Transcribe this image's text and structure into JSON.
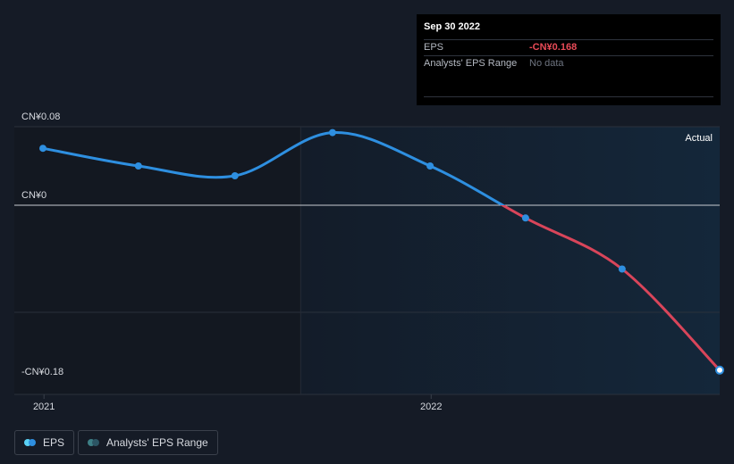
{
  "tooltip": {
    "date": "Sep 30 2022",
    "rows": [
      {
        "label": "EPS",
        "value": "-CN¥0.168"
      },
      {
        "label": "Analysts' EPS Range",
        "value": "No data"
      }
    ]
  },
  "legend": {
    "eps_label": "EPS",
    "range_label": "Analysts' EPS Range"
  },
  "colors": {
    "background": "#151b26",
    "past_band": "#131821",
    "future_band": "#14273a",
    "positive_line": "#2e8fe0",
    "negative_line": "#d9455a",
    "zero_line": "#c8ccd2",
    "grid": "#2a313c"
  },
  "chart_data": {
    "type": "line",
    "series": [
      {
        "name": "EPS",
        "x": [
          "2020-12-31",
          "2021-03-31",
          "2021-06-30",
          "2021-09-30",
          "2021-12-31",
          "2022-03-31",
          "2022-06-30",
          "2022-09-30"
        ],
        "values": [
          0.058,
          0.04,
          0.03,
          0.074,
          0.04,
          -0.013,
          -0.065,
          -0.168
        ]
      }
    ],
    "y_ticks": [
      {
        "value": 0.08,
        "label": "CN¥0.08"
      },
      {
        "value": 0,
        "label": "CN¥0"
      },
      {
        "value": -0.18,
        "label": "-CN¥0.18"
      }
    ],
    "x_ticks": [
      {
        "value": "2021-01-01",
        "label": "2021"
      },
      {
        "value": "2022-01-01",
        "label": "2022"
      }
    ],
    "ylim": [
      -0.18,
      0.08
    ],
    "xlim": [
      "2020-12-31",
      "2022-09-30"
    ],
    "highlight_start": "2021-08-31",
    "annotation": "Actual",
    "grid": true,
    "legend_position": "bottom-left"
  }
}
